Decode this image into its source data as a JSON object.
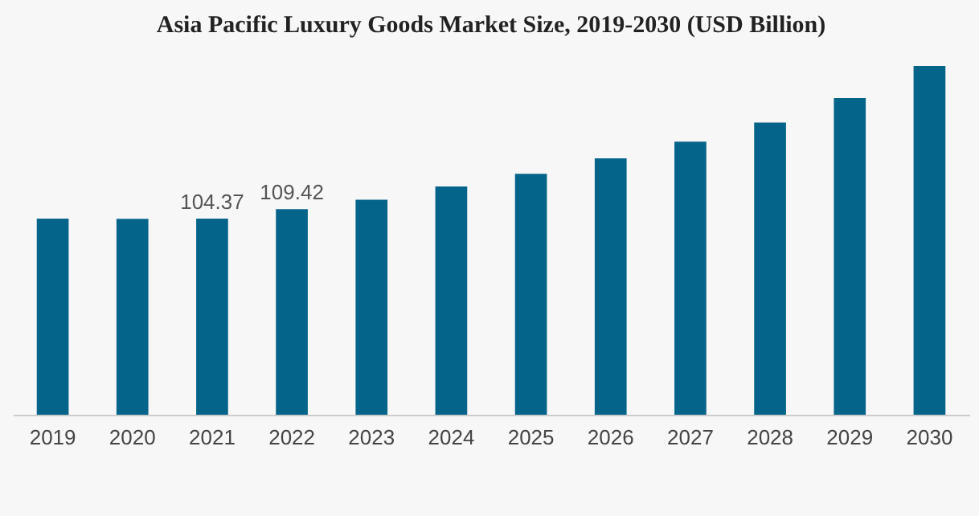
{
  "chart_data": {
    "type": "bar",
    "title": "Asia Pacific Luxury Goods Market Size, 2019-2030 (USD Billion)",
    "categories": [
      "2019",
      "2020",
      "2021",
      "2022",
      "2023",
      "2024",
      "2025",
      "2026",
      "2027",
      "2028",
      "2029",
      "2030"
    ],
    "values": [
      104.4,
      104.2,
      104.37,
      109.42,
      114.4,
      121.5,
      128.2,
      136.4,
      145.3,
      155.4,
      168.5,
      185.6
    ],
    "value_labels": [
      null,
      null,
      "104.37",
      "109.42",
      null,
      null,
      null,
      null,
      null,
      null,
      null,
      null
    ],
    "color": "#04648a",
    "grid": false
  }
}
